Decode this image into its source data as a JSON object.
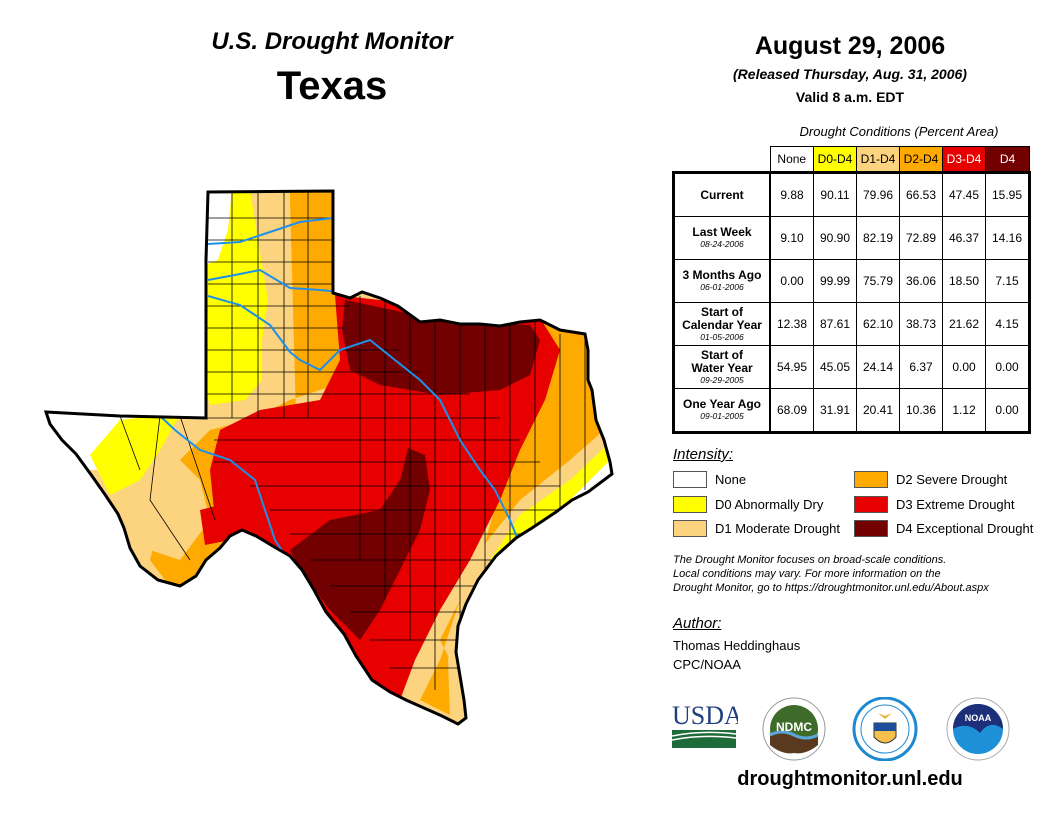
{
  "header": {
    "title": "U.S. Drought Monitor",
    "region": "Texas",
    "date": "August 29, 2006",
    "released": "(Released Thursday, Aug. 31, 2006)",
    "valid": "Valid 8 a.m. EDT"
  },
  "table": {
    "caption": "Drought Conditions (Percent Area)",
    "columns": [
      {
        "label": "None",
        "color": "#FFFFFF",
        "text_color": "#000000"
      },
      {
        "label": "D0-D4",
        "color": "#FFFF00",
        "text_color": "#000000"
      },
      {
        "label": "D1-D4",
        "color": "#FCD37F",
        "text_color": "#000000"
      },
      {
        "label": "D2-D4",
        "color": "#FFAA00",
        "text_color": "#000000"
      },
      {
        "label": "D3-D4",
        "color": "#E60000",
        "text_color": "#FFFFFF"
      },
      {
        "label": "D4",
        "color": "#730000",
        "text_color": "#FFFFFF"
      }
    ],
    "rows": [
      {
        "label": "Current",
        "label2": "",
        "date": "",
        "values": [
          "9.88",
          "90.11",
          "79.96",
          "66.53",
          "47.45",
          "15.95"
        ]
      },
      {
        "label": "Last Week",
        "label2": "",
        "date": "08-24-2006",
        "values": [
          "9.10",
          "90.90",
          "82.19",
          "72.89",
          "46.37",
          "14.16"
        ]
      },
      {
        "label": "3 Months Ago",
        "label2": "",
        "date": "06-01-2006",
        "values": [
          "0.00",
          "99.99",
          "75.79",
          "36.06",
          "18.50",
          "7.15"
        ]
      },
      {
        "label": "Start of",
        "label2": "Calendar Year",
        "date": "01-05-2006",
        "values": [
          "12.38",
          "87.61",
          "62.10",
          "38.73",
          "21.62",
          "4.15"
        ]
      },
      {
        "label": "Start of",
        "label2": "Water Year",
        "date": "09-29-2005",
        "values": [
          "54.95",
          "45.05",
          "24.14",
          "6.37",
          "0.00",
          "0.00"
        ]
      },
      {
        "label": "One Year Ago",
        "label2": "",
        "date": "09-01-2005",
        "values": [
          "68.09",
          "31.91",
          "20.41",
          "10.36",
          "1.12",
          "0.00"
        ]
      }
    ]
  },
  "legend": {
    "title": "Intensity:",
    "items": [
      {
        "label": "None",
        "color": "#FFFFFF"
      },
      {
        "label": "D0 Abnormally Dry",
        "color": "#FFFF00"
      },
      {
        "label": "D1 Moderate Drought",
        "color": "#FCD37F"
      },
      {
        "label": "D2 Severe Drought",
        "color": "#FFAA00"
      },
      {
        "label": "D3 Extreme Drought",
        "color": "#E60000"
      },
      {
        "label": "D4 Exceptional Drought",
        "color": "#730000"
      }
    ]
  },
  "note": {
    "line1": "The Drought Monitor focuses on broad-scale conditions.",
    "line2": "Local conditions may vary. For more information on the",
    "line3": "Drought Monitor, go to https://droughtmonitor.unl.edu/About.aspx"
  },
  "author": {
    "title": "Author:",
    "name": "Thomas Heddinghaus",
    "org": "CPC/NOAA"
  },
  "logos": {
    "usda": "USDA",
    "ndmc": "NDMC",
    "noaa": "NOAA"
  },
  "footer": {
    "url": "droughtmonitor.unl.edu"
  },
  "colors": {
    "river": "#1E90E8",
    "border": "#000000"
  }
}
